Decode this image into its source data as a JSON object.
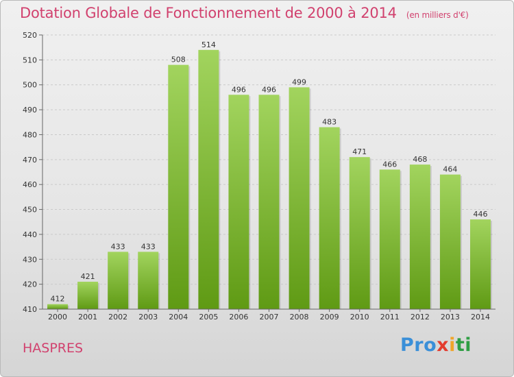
{
  "header": {
    "title": "Dotation Globale de Fonctionnement de 2000 à 2014",
    "subtitle": "(en milliers d'€)"
  },
  "footer": {
    "town": "HASPRES",
    "logo": [
      "Pro",
      "x",
      "i",
      "ti"
    ]
  },
  "colors": {
    "title": "#d1416e",
    "bar_light": "#a2d45e",
    "bar_dark": "#5f9a14",
    "grid": "#c9c9c9"
  },
  "chart_data": {
    "type": "bar",
    "title": "Dotation Globale de Fonctionnement de 2000 à 2014",
    "subtitle": "(en milliers d'€)",
    "categories": [
      "2000",
      "2001",
      "2002",
      "2003",
      "2004",
      "2005",
      "2006",
      "2007",
      "2008",
      "2009",
      "2010",
      "2011",
      "2012",
      "2013",
      "2014"
    ],
    "values": [
      412,
      421,
      433,
      433,
      508,
      514,
      496,
      496,
      499,
      483,
      471,
      466,
      468,
      464,
      446
    ],
    "ylim": [
      410,
      520
    ],
    "yticks": [
      410,
      420,
      430,
      440,
      450,
      460,
      470,
      480,
      490,
      500,
      510,
      520
    ],
    "grid": true,
    "data_labels": true
  }
}
